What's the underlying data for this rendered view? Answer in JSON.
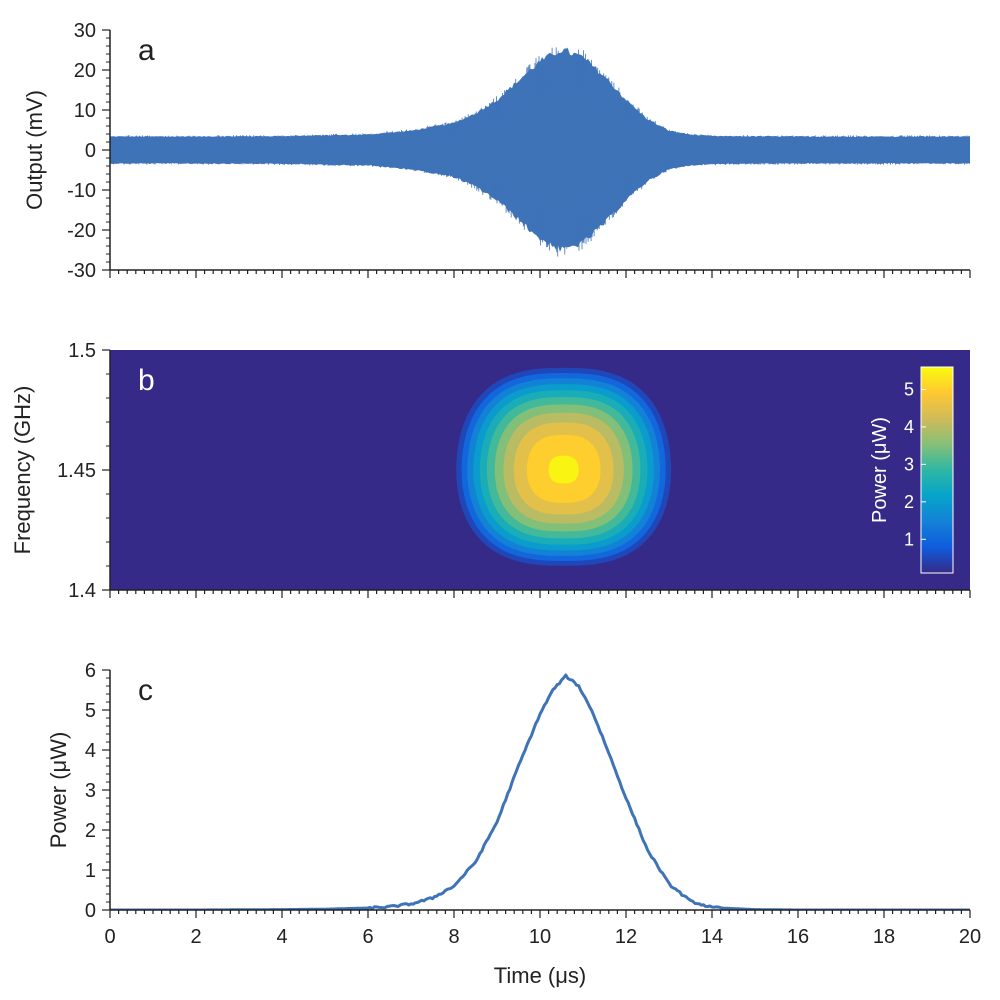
{
  "chart_data": [
    {
      "panel": "a",
      "type": "line",
      "ylabel": "Output (mV)",
      "xlabel": "",
      "xlim": [
        0,
        20
      ],
      "ylim": [
        -30,
        30
      ],
      "yticks": [
        "30",
        "20",
        "10",
        "0",
        "-10",
        "-20",
        "-30"
      ],
      "ytick_values": [
        30,
        20,
        10,
        0,
        -10,
        -20,
        -30
      ],
      "series": [
        {
          "color": "#3f73b8",
          "baseline_noise_amplitude_mV": 3.5,
          "envelope_x": [
            0,
            2,
            4,
            6,
            7,
            8,
            8.5,
            9,
            9.5,
            10,
            10.5,
            11,
            11.5,
            12,
            12.5,
            13,
            13.5,
            14,
            16,
            18,
            20
          ],
          "envelope_upper": [
            3.5,
            3.5,
            3.6,
            4,
            5,
            7,
            9.5,
            13,
            18,
            23,
            26,
            24,
            19,
            13,
            8,
            5,
            4,
            3.6,
            3.5,
            3.5,
            3.5
          ],
          "envelope_lower": [
            -3.5,
            -3.5,
            -3.6,
            -4,
            -5,
            -7,
            -9.5,
            -13,
            -18,
            -23,
            -26,
            -24,
            -19,
            -13,
            -8,
            -5,
            -4,
            -3.6,
            -3.5,
            -3.5,
            -3.5
          ]
        }
      ]
    },
    {
      "panel": "b",
      "type": "heatmap",
      "ylabel": "Frequency (GHz)",
      "xlim": [
        0,
        20
      ],
      "ylim": [
        1.4,
        1.5
      ],
      "yticks": [
        "1.5",
        "1.45",
        "1.4"
      ],
      "ytick_values": [
        1.5,
        1.45,
        1.4
      ],
      "center_time_us": 10.55,
      "center_frequency_GHz": 1.45,
      "peak_power_uW": 5.6,
      "contour_levels": [
        0.5,
        1,
        1.5,
        2,
        2.5,
        3,
        3.5,
        4,
        4.5,
        5,
        5.5
      ],
      "background_color": "#352a87",
      "colorbar": {
        "label": "Power (μW)",
        "ticks": [
          "5",
          "4",
          "3",
          "2",
          "1"
        ],
        "tick_values": [
          5,
          4,
          3,
          2,
          1
        ],
        "range": [
          0.1,
          5.6
        ],
        "colors": [
          "#352a87",
          "#0f5cdd",
          "#1481d6",
          "#06a4ca",
          "#2eb7a4",
          "#87bf77",
          "#d1bb59",
          "#fec832",
          "#f9fb0e"
        ]
      }
    },
    {
      "panel": "c",
      "type": "line",
      "ylabel": "Power (μW)",
      "xlabel": "Time (μs)",
      "xlim": [
        0,
        20
      ],
      "ylim": [
        0,
        6
      ],
      "xticks": [
        "0",
        "2",
        "4",
        "6",
        "8",
        "10",
        "12",
        "14",
        "16",
        "18",
        "20"
      ],
      "xtick_values": [
        0,
        2,
        4,
        6,
        8,
        10,
        12,
        14,
        16,
        18,
        20
      ],
      "yticks": [
        "6",
        "5",
        "4",
        "3",
        "2",
        "1",
        "0"
      ],
      "ytick_values": [
        6,
        5,
        4,
        3,
        2,
        1,
        0
      ],
      "series": [
        {
          "color": "#3f73b8",
          "x": [
            0,
            2,
            4,
            5,
            6,
            6.5,
            7,
            7.5,
            8,
            8.5,
            9,
            9.5,
            10,
            10.3,
            10.6,
            10.9,
            11.2,
            11.5,
            12,
            12.5,
            13,
            13.5,
            14,
            15,
            16,
            18,
            20
          ],
          "y": [
            0,
            0,
            0.01,
            0.02,
            0.05,
            0.08,
            0.15,
            0.3,
            0.6,
            1.2,
            2.2,
            3.6,
            4.9,
            5.5,
            5.85,
            5.6,
            5.0,
            4.2,
            2.8,
            1.5,
            0.65,
            0.22,
            0.06,
            0.01,
            0,
            0,
            0
          ]
        }
      ]
    }
  ],
  "panel_letters": {
    "a": "a",
    "b": "b",
    "c": "c"
  }
}
